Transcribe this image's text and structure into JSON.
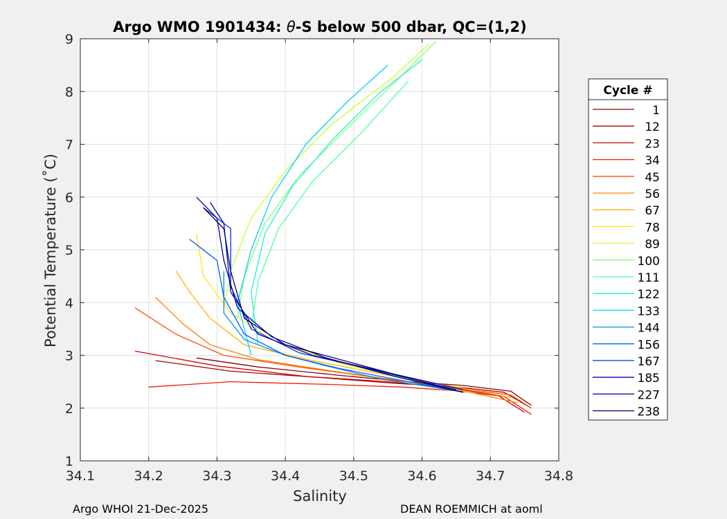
{
  "chart_data": {
    "type": "line",
    "title": "Argo WMO 1901434: θ-S below 500 dbar,  QC=(1,2)",
    "title_parts": {
      "prefix": "Argo WMO 1901434: ",
      "symbol": "θ",
      "suffix": "-S below 500 dbar,  QC=(1,2)"
    },
    "xlabel": "Salinity",
    "ylabel": "Potential Temperature (˚C)",
    "xlim": [
      34.1,
      34.8
    ],
    "ylim": [
      1,
      9
    ],
    "xticks": [
      "34.1",
      "34.2",
      "34.3",
      "34.4",
      "34.5",
      "34.6",
      "34.7",
      "34.8"
    ],
    "yticks": [
      "1",
      "2",
      "3",
      "4",
      "5",
      "6",
      "7",
      "8",
      "9"
    ],
    "grid": true,
    "legend": {
      "title": "Cycle #",
      "placement": "outside-right",
      "entries": [
        {
          "label": "1",
          "color": "#800000"
        },
        {
          "label": "12",
          "color": "#a30000"
        },
        {
          "label": "23",
          "color": "#d10000"
        },
        {
          "label": "34",
          "color": "#f01a00"
        },
        {
          "label": "45",
          "color": "#ff4a00"
        },
        {
          "label": "56",
          "color": "#ff8000"
        },
        {
          "label": "67",
          "color": "#ffb300"
        },
        {
          "label": "78",
          "color": "#ffe600"
        },
        {
          "label": "89",
          "color": "#c8ff30"
        },
        {
          "label": "100",
          "color": "#80ff70"
        },
        {
          "label": "111",
          "color": "#50ffa0"
        },
        {
          "label": "122",
          "color": "#20f0d0"
        },
        {
          "label": "133",
          "color": "#00d0ff"
        },
        {
          "label": "144",
          "color": "#0090e0"
        },
        {
          "label": "156",
          "color": "#0060ff"
        },
        {
          "label": "167",
          "color": "#0030d0"
        },
        {
          "label": "185",
          "color": "#0000c0"
        },
        {
          "label": "227",
          "color": "#000090"
        },
        {
          "label": "238",
          "color": "#000070"
        }
      ]
    },
    "series": [
      {
        "name": "1",
        "color": "#800000",
        "s": [
          34.27,
          34.36,
          34.48,
          34.58,
          34.66,
          34.73,
          34.76
        ],
        "t": [
          2.95,
          2.78,
          2.62,
          2.5,
          2.43,
          2.32,
          2.05
        ]
      },
      {
        "name": "12",
        "color": "#a30000",
        "s": [
          34.21,
          34.32,
          34.45,
          34.56,
          34.65,
          34.72,
          34.76
        ],
        "t": [
          2.9,
          2.7,
          2.58,
          2.47,
          2.4,
          2.3,
          2.0
        ]
      },
      {
        "name": "23",
        "color": "#d10000",
        "s": [
          34.18,
          34.3,
          34.43,
          34.55,
          34.64,
          34.71,
          34.75
        ],
        "t": [
          3.08,
          2.8,
          2.6,
          2.5,
          2.38,
          2.25,
          1.92
        ]
      },
      {
        "name": "34",
        "color": "#f01a00",
        "s": [
          34.2,
          34.32,
          34.46,
          34.57,
          34.65,
          34.72,
          34.76
        ],
        "t": [
          2.4,
          2.5,
          2.45,
          2.4,
          2.33,
          2.22,
          1.88
        ]
      },
      {
        "name": "45",
        "color": "#ff4a00",
        "s": [
          34.18,
          34.24,
          34.31,
          34.42,
          34.55,
          34.65,
          34.73,
          34.76
        ],
        "t": [
          3.9,
          3.4,
          3.0,
          2.78,
          2.55,
          2.38,
          2.25,
          2.0
        ]
      },
      {
        "name": "56",
        "color": "#ff8000",
        "s": [
          34.21,
          34.25,
          34.29,
          34.36,
          34.47,
          34.58,
          34.66,
          34.74
        ],
        "t": [
          4.1,
          3.6,
          3.2,
          2.92,
          2.7,
          2.5,
          2.33,
          2.1
        ]
      },
      {
        "name": "67",
        "color": "#ffb300",
        "s": [
          34.24,
          34.26,
          34.29,
          34.34,
          34.44,
          34.56,
          34.65,
          34.73
        ],
        "t": [
          4.6,
          4.2,
          3.7,
          3.2,
          2.9,
          2.6,
          2.4,
          2.2
        ]
      },
      {
        "name": "78",
        "color": "#ffe600",
        "s": [
          34.27,
          34.28,
          34.32,
          34.38,
          34.48,
          34.58,
          34.67
        ],
        "t": [
          5.3,
          4.5,
          3.8,
          3.3,
          2.85,
          2.55,
          2.3
        ]
      },
      {
        "name": "89",
        "color": "#c8ff30",
        "s": [
          34.31,
          34.32,
          34.35,
          34.4,
          34.47,
          34.56,
          34.61
        ],
        "t": [
          3.9,
          4.6,
          5.6,
          6.5,
          7.4,
          8.3,
          8.9
        ]
      },
      {
        "name": "100",
        "color": "#80ff70",
        "s": [
          34.33,
          34.34,
          34.37,
          34.42,
          34.49,
          34.57,
          34.62
        ],
        "t": [
          3.7,
          4.5,
          5.5,
          6.4,
          7.3,
          8.3,
          8.95
        ]
      },
      {
        "name": "111",
        "color": "#50ffa0",
        "s": [
          34.35,
          34.36,
          34.39,
          34.44,
          34.51,
          34.58
        ],
        "t": [
          3.5,
          4.4,
          5.4,
          6.3,
          7.2,
          8.2
        ]
      },
      {
        "name": "122",
        "color": "#20f0d0",
        "s": [
          34.36,
          34.35,
          34.37,
          34.41,
          34.47,
          34.54,
          34.6
        ],
        "t": [
          3.2,
          4.2,
          5.3,
          6.2,
          7.1,
          8.0,
          8.6
        ]
      },
      {
        "name": "133",
        "color": "#00d0ff",
        "s": [
          34.35,
          34.33,
          34.35,
          34.38,
          34.43,
          34.49,
          34.55
        ],
        "t": [
          3.0,
          4.0,
          5.0,
          6.0,
          7.0,
          7.8,
          8.5
        ]
      },
      {
        "name": "144",
        "color": "#0090e0",
        "s": [
          34.31,
          34.31,
          34.34,
          34.4,
          34.46,
          34.54,
          34.64
        ],
        "t": [
          4.6,
          3.8,
          3.3,
          3.0,
          2.8,
          2.55,
          2.35
        ]
      },
      {
        "name": "156",
        "color": "#0060ff",
        "s": [
          34.26,
          34.3,
          34.31,
          34.34,
          34.4,
          34.48,
          34.58,
          34.66
        ],
        "t": [
          5.2,
          4.8,
          4.1,
          3.4,
          3.0,
          2.75,
          2.5,
          2.3
        ]
      },
      {
        "name": "167",
        "color": "#0030d0",
        "s": [
          34.28,
          34.32,
          34.32,
          34.35,
          34.42,
          34.52,
          34.65
        ],
        "t": [
          5.8,
          5.4,
          4.3,
          3.5,
          3.05,
          2.75,
          2.35
        ]
      },
      {
        "name": "185",
        "color": "#0000c0",
        "s": [
          34.29,
          34.31,
          34.32,
          34.36,
          34.44,
          34.54,
          34.66
        ],
        "t": [
          5.9,
          5.5,
          4.2,
          3.4,
          3.0,
          2.7,
          2.35
        ]
      },
      {
        "name": "227",
        "color": "#000090",
        "s": [
          34.27,
          34.3,
          34.31,
          34.33,
          34.38,
          34.46,
          34.56,
          34.66
        ],
        "t": [
          6.0,
          5.6,
          4.8,
          3.9,
          3.35,
          2.95,
          2.6,
          2.3
        ]
      },
      {
        "name": "238",
        "color": "#000070",
        "s": [
          34.28,
          34.31,
          34.32,
          34.34,
          34.4,
          34.5,
          34.6,
          34.66
        ],
        "t": [
          5.8,
          5.4,
          4.6,
          3.7,
          3.2,
          2.85,
          2.5,
          2.3
        ]
      }
    ]
  },
  "footer": {
    "left": "Argo WHOI 21-Dec-2025",
    "right": "DEAN ROEMMICH at aoml"
  }
}
